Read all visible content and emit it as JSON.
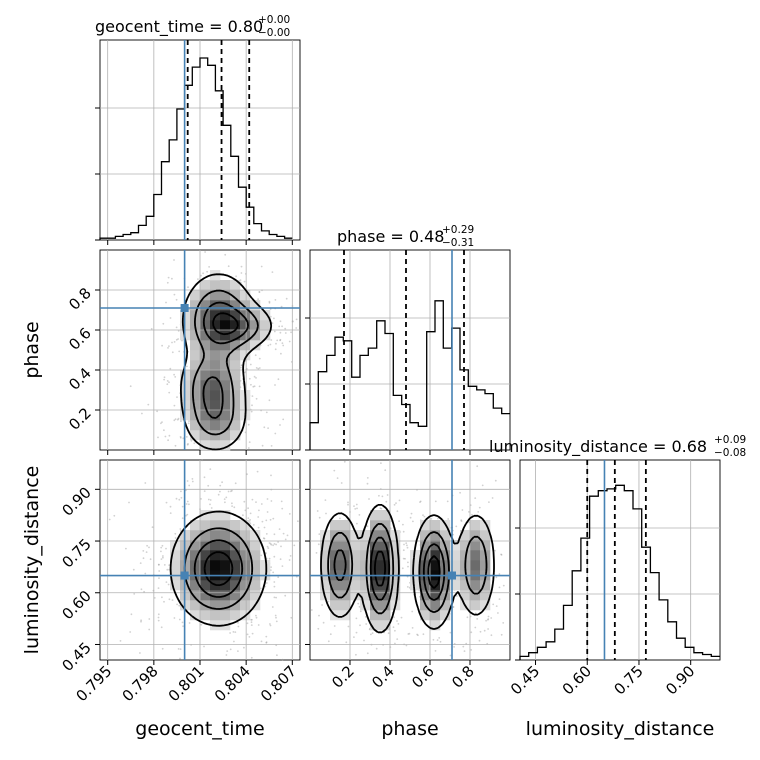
{
  "colors": {
    "truth": "#4682b4",
    "density": "#000000",
    "grid": "#b0b0b0"
  },
  "chart_data": {
    "type": "corner",
    "parameters": [
      "geocent_time",
      "phase",
      "luminosity_distance"
    ],
    "truths": {
      "geocent_time": 0.8,
      "phase": 0.71,
      "luminosity_distance": 0.65
    },
    "ranges": {
      "geocent_time": [
        0.7945,
        0.8075
      ],
      "phase": [
        0.0,
        1.0
      ],
      "luminosity_distance": [
        0.405,
        0.985
      ]
    },
    "titles": [
      {
        "param": "geocent_time",
        "label": "geocent_time = 0.80",
        "plus": "+0.00",
        "minus": "−0.00"
      },
      {
        "param": "phase",
        "label": "phase = 0.48",
        "plus": "+0.29",
        "minus": "−0.31"
      },
      {
        "param": "luminosity_distance",
        "label": "luminosity_distance = 0.68",
        "plus": "+0.09",
        "minus": "−0.08"
      }
    ],
    "quantiles": {
      "geocent_time": [
        0.8002,
        0.8024,
        0.8042
      ],
      "phase": [
        0.17,
        0.48,
        0.77
      ],
      "luminosity_distance": [
        0.6,
        0.68,
        0.77
      ]
    },
    "ticks": {
      "geocent_time": [
        "0.795",
        "0.798",
        "0.801",
        "0.804",
        "0.807"
      ],
      "phase": [
        "0.2",
        "0.4",
        "0.6",
        "0.8"
      ],
      "luminosity_distance": [
        "0.45",
        "0.60",
        "0.75",
        "0.90"
      ]
    },
    "histograms": {
      "geocent_time": {
        "edges": [
          0.7945,
          0.807
        ],
        "counts": [
          0.01,
          0.01,
          0.02,
          0.03,
          0.04,
          0.08,
          0.13,
          0.25,
          0.43,
          0.55,
          0.72,
          0.85,
          0.95,
          1.0,
          0.96,
          0.82,
          0.63,
          0.46,
          0.29,
          0.18,
          0.09,
          0.05,
          0.03,
          0.02,
          0.01
        ]
      },
      "phase": {
        "edges": [
          0.0,
          1.0
        ],
        "counts": [
          0.15,
          0.43,
          0.52,
          0.62,
          0.6,
          0.4,
          0.52,
          0.56,
          0.71,
          0.64,
          0.3,
          0.25,
          0.15,
          0.13,
          0.65,
          0.82,
          0.56,
          0.67,
          0.44,
          0.35,
          0.33,
          0.31,
          0.23,
          0.2
        ]
      },
      "luminosity_distance": {
        "edges": [
          0.405,
          0.985
        ],
        "counts": [
          0.02,
          0.04,
          0.07,
          0.1,
          0.17,
          0.3,
          0.49,
          0.67,
          0.9,
          0.93,
          0.94,
          0.96,
          0.93,
          0.83,
          0.62,
          0.48,
          0.33,
          0.21,
          0.12,
          0.07,
          0.04,
          0.03,
          0.02
        ]
      }
    },
    "blobs": {
      "time_phase": [
        {
          "x": 0.8022,
          "y": 0.65,
          "sx": 0.0012,
          "sy": 0.12,
          "w": 1.0
        },
        {
          "x": 0.8018,
          "y": 0.32,
          "sx": 0.0011,
          "sy": 0.1,
          "w": 0.8
        },
        {
          "x": 0.802,
          "y": 0.15,
          "sx": 0.0011,
          "sy": 0.09,
          "w": 0.6
        },
        {
          "x": 0.8036,
          "y": 0.62,
          "sx": 0.0012,
          "sy": 0.06,
          "w": 0.6
        }
      ],
      "time_distance": [
        {
          "x": 0.8022,
          "y": 0.67,
          "sx": 0.0015,
          "sy": 0.08,
          "w": 1.0
        }
      ],
      "phase_distance": [
        {
          "x": 0.15,
          "y": 0.68,
          "sx": 0.05,
          "sy": 0.08,
          "w": 0.7
        },
        {
          "x": 0.35,
          "y": 0.67,
          "sx": 0.045,
          "sy": 0.09,
          "w": 1.0
        },
        {
          "x": 0.62,
          "y": 0.66,
          "sx": 0.05,
          "sy": 0.08,
          "w": 1.0
        },
        {
          "x": 0.83,
          "y": 0.68,
          "sx": 0.05,
          "sy": 0.08,
          "w": 0.6
        }
      ]
    },
    "axis_labels": {
      "x": [
        "geocent_time",
        "phase",
        "luminosity_distance"
      ],
      "y": [
        "phase",
        "luminosity_distance"
      ]
    }
  }
}
